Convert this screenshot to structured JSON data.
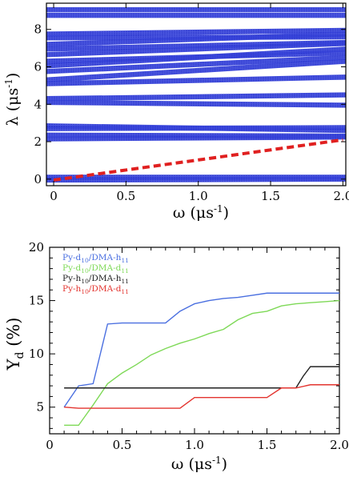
{
  "chart_data": [
    {
      "type": "line",
      "xlabel": "ω  (μs",
      "xlabel_sup": "-1",
      "xlabel_close": ")",
      "ylabel": "λ  (μs",
      "ylabel_sup": "-1",
      "ylabel_close": ")",
      "xlim": [
        -0.05,
        2.02
      ],
      "ylim": [
        -0.35,
        9.4
      ],
      "xticks": [
        0,
        0.5,
        1.0,
        1.5,
        2.0
      ],
      "xtick_labels": [
        "0",
        "0.5",
        "1.0",
        "1.5",
        "2.0"
      ],
      "yticks": [
        0,
        2,
        4,
        6,
        8
      ],
      "ytick_labels": [
        "0",
        "2",
        "4",
        "6",
        "8"
      ],
      "grid": false,
      "colors": {
        "bands": "#3a46dc",
        "dashed": "#e02020"
      },
      "series": [
        {
          "style": "dashed",
          "x": [
            0,
            2.0
          ],
          "y": [
            -0.05,
            2.1
          ]
        }
      ],
      "eigenvalue_bands": [
        {
          "y0": 9.05,
          "y1": 9.05
        },
        {
          "y0": 8.75,
          "y1": 8.75
        },
        {
          "y0": 7.75,
          "y1": 7.95
        },
        {
          "y0": 7.55,
          "y1": 7.6
        },
        {
          "y0": 7.2,
          "y1": 7.75
        },
        {
          "y0": 6.95,
          "y1": 7.3
        },
        {
          "y0": 6.65,
          "y1": 7.25
        },
        {
          "y0": 6.3,
          "y1": 6.75
        },
        {
          "y0": 6.05,
          "y1": 6.95
        },
        {
          "y0": 5.75,
          "y1": 6.5
        },
        {
          "y0": 5.3,
          "y1": 6.3
        },
        {
          "y0": 5.1,
          "y1": 5.45
        },
        {
          "y0": 4.3,
          "y1": 4.5
        },
        {
          "y0": 4.1,
          "y1": 3.95
        },
        {
          "y0": 2.85,
          "y1": 2.6
        },
        {
          "y0": 2.7,
          "y1": 2.75
        },
        {
          "y0": 2.35,
          "y1": 2.3
        },
        {
          "y0": 2.15,
          "y1": 2.25
        },
        {
          "y0": 0.1,
          "y1": 0.1
        },
        {
          "y0": -0.05,
          "y1": 0.0
        }
      ]
    },
    {
      "type": "line",
      "xlabel": "ω  (μs",
      "xlabel_sup": "-1",
      "xlabel_close": ")",
      "ylabel": "Y",
      "ylabel_sub": "d",
      "ylabel_unit": "(%)",
      "xlim": [
        0,
        2.0
      ],
      "ylim": [
        2.5,
        20
      ],
      "xticks": [
        0,
        0.5,
        1.0,
        1.5,
        2.0
      ],
      "xtick_labels": [
        "0",
        "0.5",
        "1.0",
        "1.5",
        "2.0"
      ],
      "yticks": [
        5,
        10,
        15,
        20
      ],
      "ytick_labels": [
        "5",
        "10",
        "15",
        "20"
      ],
      "grid": false,
      "legend": "top-left",
      "series": [
        {
          "label": [
            "Py-d",
            "10",
            "/DMA-h",
            "11"
          ],
          "color": "#4a6fe0",
          "x": [
            0.1,
            0.2,
            0.3,
            0.35,
            0.4,
            0.5,
            0.7,
            0.8,
            0.9,
            1.0,
            1.1,
            1.2,
            1.3,
            1.4,
            1.5,
            1.6,
            1.7,
            1.8,
            1.9,
            2.0
          ],
          "y": [
            5.0,
            7.0,
            7.2,
            10.0,
            12.8,
            12.9,
            12.9,
            12.9,
            14.0,
            14.7,
            15.0,
            15.2,
            15.3,
            15.5,
            15.7,
            15.7,
            15.7,
            15.7,
            15.7,
            15.7
          ]
        },
        {
          "label": [
            "Py-d",
            "10",
            "/DMA-d",
            "11"
          ],
          "color": "#7ed957",
          "x": [
            0.1,
            0.2,
            0.3,
            0.4,
            0.5,
            0.6,
            0.7,
            0.8,
            0.9,
            1.0,
            1.1,
            1.2,
            1.3,
            1.4,
            1.5,
            1.6,
            1.7,
            1.8,
            1.9,
            2.0
          ],
          "y": [
            3.3,
            3.3,
            5.2,
            7.2,
            8.2,
            9.0,
            9.9,
            10.5,
            11.0,
            11.4,
            11.9,
            12.3,
            13.2,
            13.8,
            14.0,
            14.5,
            14.7,
            14.8,
            14.9,
            15.0
          ]
        },
        {
          "label": [
            "Py-h",
            "10",
            "/DMA-h",
            "11"
          ],
          "color": "#222222",
          "x": [
            0.1,
            1.65,
            1.7,
            1.75,
            1.8,
            2.0
          ],
          "y": [
            6.8,
            6.8,
            6.8,
            7.9,
            8.8,
            8.8
          ]
        },
        {
          "label": [
            "Py-h",
            "10",
            "/DMA-d",
            "11"
          ],
          "color": "#e3342f",
          "x": [
            0.1,
            0.2,
            0.9,
            1.0,
            1.5,
            1.6,
            1.7,
            1.8,
            2.0
          ],
          "y": [
            5.0,
            4.9,
            4.9,
            5.9,
            5.9,
            6.8,
            6.8,
            7.1,
            7.1
          ]
        }
      ]
    }
  ]
}
